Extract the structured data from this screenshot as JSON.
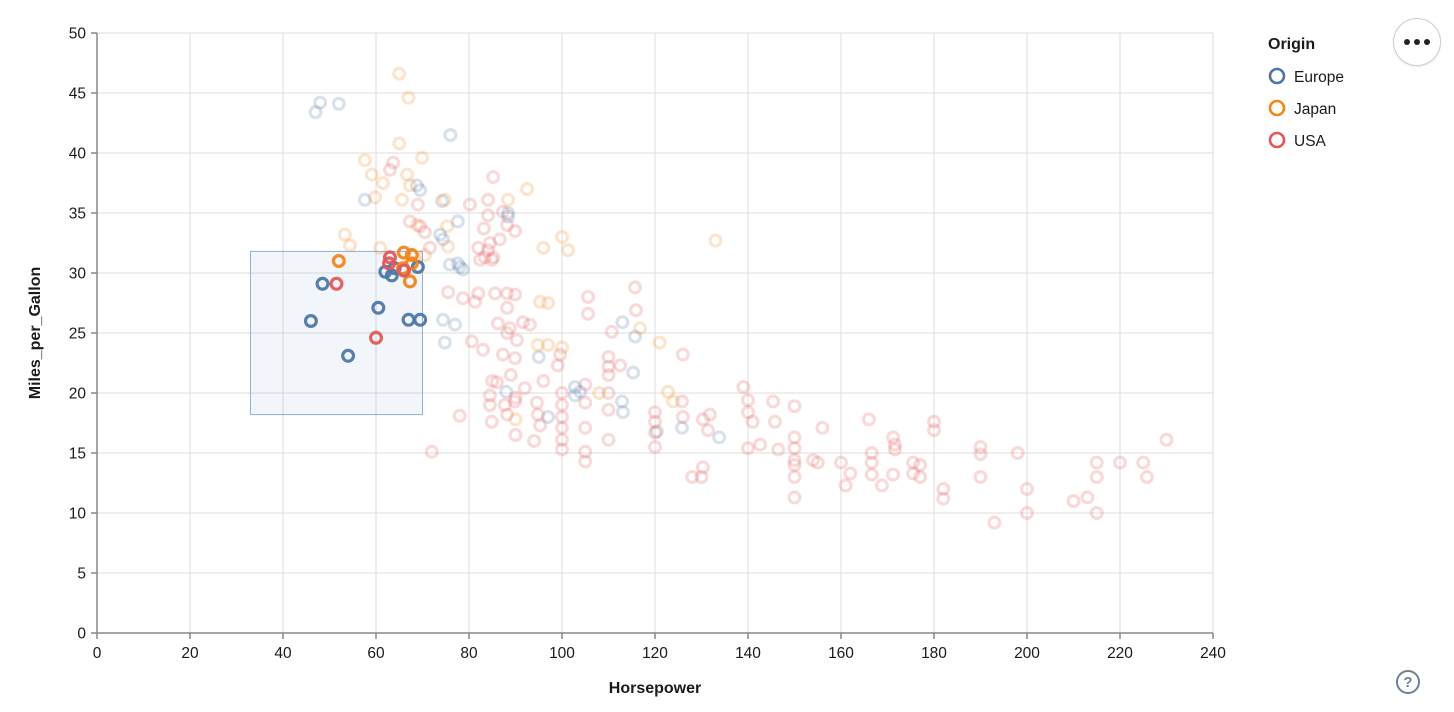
{
  "page": {
    "background": "#ffffff"
  },
  "legend": {
    "title": "Origin",
    "items": [
      {
        "label": "Europe",
        "color": "#4c78a8"
      },
      {
        "label": "Japan",
        "color": "#f58518"
      },
      {
        "label": "USA",
        "color": "#e45756"
      }
    ]
  },
  "controls": {
    "menu_button": "more-options",
    "help_label": "?"
  },
  "chart_data": {
    "type": "scatter",
    "title": "",
    "xlabel": "Horsepower",
    "ylabel": "Miles_per_Gallon",
    "xlim": [
      0,
      240
    ],
    "ylim": [
      0,
      50
    ],
    "x_ticks": [
      0,
      20,
      40,
      60,
      80,
      100,
      120,
      140,
      160,
      180,
      200,
      220,
      240
    ],
    "y_ticks": [
      0,
      5,
      10,
      15,
      20,
      25,
      30,
      35,
      40,
      45,
      50
    ],
    "grid": true,
    "legend_position": "top-right",
    "colors": {
      "Europe": "#4c78a8",
      "Japan": "#f58518",
      "USA": "#e45756"
    },
    "point_style": {
      "shape": "circle-open",
      "radius": 5.4,
      "stroke_width": 3.2,
      "faded_opacity": 0.22,
      "selected_opacity": 0.95
    },
    "selection_brush": {
      "x": [
        33,
        70
      ],
      "y": [
        18.2,
        31.8
      ],
      "fill": "#4c78a8",
      "fill_opacity": 0.07,
      "stroke": "#8fb0d4"
    },
    "series": [
      {
        "name": "Europe",
        "selected": [
          [
            46,
            26
          ],
          [
            48.5,
            29.1
          ],
          [
            54,
            23.1
          ],
          [
            60.5,
            27.1
          ],
          [
            62,
            30.1
          ],
          [
            63.4,
            29.8
          ],
          [
            64,
            30.4
          ],
          [
            67,
            26.1
          ],
          [
            69,
            30.5
          ],
          [
            69.5,
            26.1
          ]
        ],
        "unselected": [
          [
            47,
            43.4
          ],
          [
            48,
            44.2
          ],
          [
            52,
            44.1
          ],
          [
            76,
            41.5
          ],
          [
            57.6,
            36.1
          ],
          [
            68.8,
            37.3
          ],
          [
            69.5,
            36.9
          ],
          [
            74.2,
            36
          ],
          [
            73.8,
            33.2
          ],
          [
            74.4,
            32.8
          ],
          [
            77.6,
            34.3
          ],
          [
            88.4,
            35
          ],
          [
            88.4,
            34.7
          ],
          [
            75.9,
            30.7
          ],
          [
            77.6,
            30.8
          ],
          [
            78,
            30.5
          ],
          [
            78.7,
            30.3
          ],
          [
            74.4,
            26.1
          ],
          [
            77,
            25.7
          ],
          [
            74.8,
            24.2
          ],
          [
            88,
            20.1
          ],
          [
            95,
            23
          ],
          [
            97,
            18
          ],
          [
            102.8,
            20.5
          ],
          [
            102.8,
            19.8
          ],
          [
            103.9,
            20.1
          ],
          [
            113,
            25.9
          ],
          [
            115.7,
            24.7
          ],
          [
            115.3,
            21.7
          ],
          [
            112.9,
            19.3
          ],
          [
            113.1,
            18.4
          ],
          [
            120.4,
            16.8
          ],
          [
            125.8,
            17.1
          ],
          [
            133.8,
            16.3
          ]
        ]
      },
      {
        "name": "Japan",
        "selected": [
          [
            52,
            31
          ],
          [
            65.8,
            30.4
          ],
          [
            66,
            31.7
          ],
          [
            67.3,
            29.3
          ],
          [
            67.7,
            31.5
          ],
          [
            67.7,
            30.8
          ]
        ],
        "unselected": [
          [
            65,
            46.6
          ],
          [
            67,
            44.6
          ],
          [
            65,
            40.8
          ],
          [
            57.6,
            39.4
          ],
          [
            69.9,
            39.6
          ],
          [
            59.1,
            38.2
          ],
          [
            61.5,
            37.5
          ],
          [
            66.7,
            38.2
          ],
          [
            67.3,
            37.3
          ],
          [
            59.8,
            36.3
          ],
          [
            65.6,
            36.1
          ],
          [
            74.8,
            36.1
          ],
          [
            92.5,
            37
          ],
          [
            88.4,
            36.1
          ],
          [
            68.8,
            34
          ],
          [
            75.3,
            33.9
          ],
          [
            53.3,
            33.2
          ],
          [
            54.4,
            32.3
          ],
          [
            60.9,
            32.1
          ],
          [
            70.5,
            31.5
          ],
          [
            75.5,
            32.2
          ],
          [
            96,
            32.1
          ],
          [
            100,
            33
          ],
          [
            101.3,
            31.9
          ],
          [
            133,
            32.7
          ],
          [
            95.3,
            27.6
          ],
          [
            97,
            27.5
          ],
          [
            94.8,
            24
          ],
          [
            97,
            24
          ],
          [
            100,
            23.8
          ],
          [
            108,
            20
          ],
          [
            116.8,
            25.4
          ],
          [
            121,
            24.2
          ],
          [
            122.8,
            20.1
          ],
          [
            123.9,
            19.3
          ],
          [
            90,
            17.8
          ]
        ]
      },
      {
        "name": "USA",
        "selected": [
          [
            51.5,
            29.1
          ],
          [
            60,
            24.6
          ],
          [
            62.8,
            30.8
          ],
          [
            63,
            31.3
          ],
          [
            66,
            30.2
          ]
        ],
        "unselected": [
          [
            63,
            38.6
          ],
          [
            63.7,
            39.2
          ],
          [
            80.2,
            35.7
          ],
          [
            83.2,
            33.7
          ],
          [
            84.1,
            36.1
          ],
          [
            84.1,
            34.8
          ],
          [
            85.2,
            38
          ],
          [
            87.3,
            35.1
          ],
          [
            88.2,
            34
          ],
          [
            89.9,
            33.5
          ],
          [
            84.5,
            32.5
          ],
          [
            86.6,
            32.8
          ],
          [
            67.3,
            34.3
          ],
          [
            69,
            35.7
          ],
          [
            69.5,
            33.9
          ],
          [
            70.5,
            33.4
          ],
          [
            71.6,
            32.1
          ],
          [
            82,
            32.1
          ],
          [
            82.4,
            31.1
          ],
          [
            84.1,
            31.9
          ],
          [
            85.2,
            31.3
          ],
          [
            83.4,
            31.3
          ],
          [
            84.9,
            31.1
          ],
          [
            75.5,
            28.4
          ],
          [
            78.7,
            27.9
          ],
          [
            81.3,
            27.6
          ],
          [
            82,
            28.3
          ],
          [
            85.6,
            28.3
          ],
          [
            88.2,
            28.3
          ],
          [
            89.9,
            28.2
          ],
          [
            88.2,
            27.1
          ],
          [
            86.2,
            25.8
          ],
          [
            88.8,
            25.4
          ],
          [
            91.6,
            25.9
          ],
          [
            88.2,
            25
          ],
          [
            90.3,
            24.4
          ],
          [
            93.1,
            25.7
          ],
          [
            80.6,
            24.3
          ],
          [
            83,
            23.6
          ],
          [
            87.3,
            23.2
          ],
          [
            89.9,
            22.9
          ],
          [
            99.6,
            23.2
          ],
          [
            99.1,
            22.3
          ],
          [
            105.6,
            28
          ],
          [
            105.6,
            26.6
          ],
          [
            110.7,
            25.1
          ],
          [
            115.7,
            28.8
          ],
          [
            115.9,
            26.9
          ],
          [
            112.5,
            22.3
          ],
          [
            72,
            15.1
          ],
          [
            78,
            18.1
          ],
          [
            84.5,
            19.8
          ],
          [
            84.5,
            19
          ],
          [
            84.9,
            17.6
          ],
          [
            85,
            21
          ],
          [
            86,
            20.9
          ],
          [
            87.7,
            19
          ],
          [
            88.2,
            18.2
          ],
          [
            89,
            21.5
          ],
          [
            89.9,
            19.3
          ],
          [
            90,
            19.6
          ],
          [
            90,
            16.5
          ],
          [
            92,
            20.4
          ],
          [
            94,
            16
          ],
          [
            94.6,
            19.2
          ],
          [
            94.8,
            18.2
          ],
          [
            95.3,
            17.3
          ],
          [
            96,
            21
          ],
          [
            100,
            20
          ],
          [
            100,
            19
          ],
          [
            100,
            18
          ],
          [
            100,
            17.1
          ],
          [
            100,
            16.1
          ],
          [
            100,
            15.3
          ],
          [
            105,
            20.7
          ],
          [
            105,
            19.2
          ],
          [
            105,
            17.1
          ],
          [
            105,
            15.1
          ],
          [
            105,
            14.3
          ],
          [
            110,
            23
          ],
          [
            110,
            22.2
          ],
          [
            110,
            21.5
          ],
          [
            110,
            20
          ],
          [
            110,
            18.6
          ],
          [
            110,
            16.1
          ],
          [
            120,
            18.4
          ],
          [
            120,
            17.6
          ],
          [
            120,
            16.7
          ],
          [
            120,
            15.5
          ],
          [
            126,
            23.2
          ],
          [
            125.8,
            19.3
          ],
          [
            126,
            18
          ],
          [
            128,
            13
          ],
          [
            130,
            13
          ],
          [
            130.3,
            13.8
          ],
          [
            130.3,
            17.8
          ],
          [
            131.4,
            16.9
          ],
          [
            131.8,
            18.2
          ],
          [
            139,
            20.5
          ],
          [
            140,
            19.4
          ],
          [
            140,
            18.4
          ],
          [
            141,
            17.6
          ],
          [
            140,
            15.4
          ],
          [
            142.6,
            15.7
          ],
          [
            145.4,
            19.3
          ],
          [
            145.8,
            17.6
          ],
          [
            146.5,
            15.3
          ],
          [
            150,
            18.9
          ],
          [
            150,
            16.3
          ],
          [
            150,
            15.4
          ],
          [
            150,
            14.4
          ],
          [
            150,
            14
          ],
          [
            150,
            13
          ],
          [
            150,
            11.3
          ],
          [
            154,
            14.4
          ],
          [
            155,
            14.2
          ],
          [
            156,
            17.1
          ],
          [
            160,
            14.2
          ],
          [
            161,
            12.3
          ],
          [
            162,
            13.3
          ],
          [
            166,
            17.8
          ],
          [
            166.6,
            15
          ],
          [
            166.6,
            14.2
          ],
          [
            166.6,
            13.2
          ],
          [
            168.8,
            12.3
          ],
          [
            171.2,
            16.3
          ],
          [
            171.6,
            15.7
          ],
          [
            171.6,
            15.3
          ],
          [
            171.2,
            13.2
          ],
          [
            175.5,
            14.2
          ],
          [
            175.5,
            13.3
          ],
          [
            177,
            14
          ],
          [
            177,
            13
          ],
          [
            180,
            17.6
          ],
          [
            180,
            16.9
          ],
          [
            182,
            12
          ],
          [
            182,
            11.2
          ],
          [
            190,
            15.5
          ],
          [
            190,
            14.9
          ],
          [
            190,
            13
          ],
          [
            193,
            9.2
          ],
          [
            198,
            15
          ],
          [
            200,
            12
          ],
          [
            200,
            10
          ],
          [
            210,
            11
          ],
          [
            213,
            11.3
          ],
          [
            215,
            10
          ],
          [
            215,
            14.2
          ],
          [
            215,
            13
          ],
          [
            220,
            14.2
          ],
          [
            225,
            14.2
          ],
          [
            225.8,
            13
          ],
          [
            230,
            16.1
          ]
        ]
      }
    ]
  }
}
